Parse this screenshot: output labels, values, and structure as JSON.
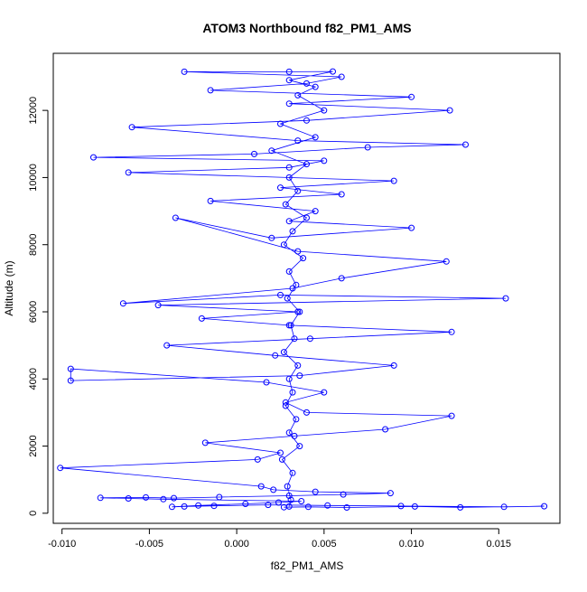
{
  "chart_data": {
    "type": "scatter",
    "title": "ATOM3 Northbound f82_PM1_AMS",
    "xlabel": "f82_PM1_AMS",
    "ylabel": "Altitude (m)",
    "xlim": [
      -0.0105,
      0.0185
    ],
    "ylim": [
      -300,
      13700
    ],
    "x_ticks": [
      -0.01,
      -0.005,
      0.0,
      0.005,
      0.01,
      0.015
    ],
    "x_tick_labels": [
      "-0.010",
      "-0.005",
      "0.000",
      "0.005",
      "0.010",
      "0.015"
    ],
    "y_ticks": [
      0,
      2000,
      4000,
      6000,
      8000,
      10000,
      12000
    ],
    "y_tick_labels": [
      "0",
      "2000",
      "4000",
      "6000",
      "8000",
      "10000",
      "12000"
    ],
    "grid": false,
    "legend": "none",
    "marker": "open-circle",
    "connect_points": true,
    "series": [
      {
        "color": "#0000ff",
        "points": [
          [
            0.0027,
            180
          ],
          [
            0.0041,
            190
          ],
          [
            0.0063,
            170
          ],
          [
            0.0102,
            200
          ],
          [
            0.0128,
            175
          ],
          [
            0.0176,
            210
          ],
          [
            0.0153,
            190
          ],
          [
            0.0094,
            215
          ],
          [
            0.0052,
            230
          ],
          [
            0.0018,
            250
          ],
          [
            -0.0013,
            220
          ],
          [
            -0.003,
            200
          ],
          [
            -0.0037,
            190
          ],
          [
            -0.0022,
            230
          ],
          [
            0.0005,
            280
          ],
          [
            0.0024,
            320
          ],
          [
            0.0037,
            360
          ],
          [
            -0.0042,
            420
          ],
          [
            -0.0062,
            440
          ],
          [
            -0.0078,
            460
          ],
          [
            -0.0052,
            470
          ],
          [
            -0.0036,
            450
          ],
          [
            -0.001,
            480
          ],
          [
            0.003,
            520
          ],
          [
            0.0061,
            560
          ],
          [
            0.0088,
            600
          ],
          [
            0.0045,
            640
          ],
          [
            0.0021,
            700
          ],
          [
            0.0014,
            800
          ],
          [
            -0.0101,
            1350
          ],
          [
            0.0012,
            1600
          ],
          [
            0.0025,
            1800
          ],
          [
            -0.0018,
            2100
          ],
          [
            0.0033,
            2300
          ],
          [
            0.0085,
            2500
          ],
          [
            0.0123,
            2900
          ],
          [
            0.004,
            3000
          ],
          [
            0.0028,
            3300
          ],
          [
            0.005,
            3600
          ],
          [
            0.0017,
            3900
          ],
          [
            -0.0095,
            4300
          ],
          [
            -0.0095,
            3950
          ],
          [
            0.0036,
            4100
          ],
          [
            0.009,
            4400
          ],
          [
            0.0022,
            4700
          ],
          [
            -0.004,
            5000
          ],
          [
            0.0042,
            5200
          ],
          [
            0.0123,
            5400
          ],
          [
            0.003,
            5600
          ],
          [
            -0.002,
            5800
          ],
          [
            0.0035,
            6000
          ],
          [
            -0.0045,
            6200
          ],
          [
            0.0154,
            6400
          ],
          [
            0.0025,
            6500
          ],
          [
            -0.0065,
            6250
          ],
          [
            0.0032,
            6700
          ],
          [
            0.006,
            7000
          ],
          [
            0.012,
            7500
          ],
          [
            0.0035,
            7800
          ],
          [
            -0.0035,
            8800
          ],
          [
            0.002,
            8200
          ],
          [
            0.01,
            8500
          ],
          [
            0.003,
            8700
          ],
          [
            0.0045,
            9000
          ],
          [
            -0.0015,
            9300
          ],
          [
            0.006,
            9500
          ],
          [
            0.0025,
            9700
          ],
          [
            0.009,
            9900
          ],
          [
            -0.0062,
            10150
          ],
          [
            0.003,
            10300
          ],
          [
            0.005,
            10500
          ],
          [
            -0.0082,
            10600
          ],
          [
            0.001,
            10700
          ],
          [
            0.0075,
            10900
          ],
          [
            0.0131,
            10980
          ],
          [
            0.0035,
            11100
          ],
          [
            -0.006,
            11500
          ],
          [
            0.004,
            11700
          ],
          [
            0.0122,
            12000
          ],
          [
            0.003,
            12200
          ],
          [
            0.01,
            12400
          ],
          [
            -0.0015,
            12600
          ],
          [
            0.004,
            12800
          ],
          [
            0.006,
            13000
          ],
          [
            -0.003,
            13150
          ],
          [
            0.003,
            13150
          ],
          [
            0.0055,
            13160
          ],
          [
            0.003,
            12900
          ],
          [
            0.0045,
            12700
          ],
          [
            0.0035,
            12450
          ],
          [
            0.005,
            12000
          ],
          [
            0.0025,
            11600
          ],
          [
            0.0045,
            11200
          ],
          [
            0.002,
            10800
          ],
          [
            0.004,
            10400
          ],
          [
            0.003,
            10000
          ],
          [
            0.0035,
            9600
          ],
          [
            0.0028,
            9200
          ],
          [
            0.004,
            8800
          ],
          [
            0.0032,
            8400
          ],
          [
            0.0027,
            8000
          ],
          [
            0.0038,
            7600
          ],
          [
            0.003,
            7200
          ],
          [
            0.0034,
            6800
          ],
          [
            0.0029,
            6400
          ],
          [
            0.0036,
            6000
          ],
          [
            0.0031,
            5600
          ],
          [
            0.0033,
            5200
          ],
          [
            0.0027,
            4800
          ],
          [
            0.0035,
            4400
          ],
          [
            0.003,
            4000
          ],
          [
            0.0032,
            3600
          ],
          [
            0.0028,
            3200
          ],
          [
            0.0034,
            2800
          ],
          [
            0.003,
            2400
          ],
          [
            0.0036,
            2000
          ],
          [
            0.0026,
            1600
          ],
          [
            0.0032,
            1200
          ],
          [
            0.0029,
            800
          ],
          [
            0.0031,
            400
          ],
          [
            0.003,
            200
          ]
        ]
      }
    ]
  }
}
